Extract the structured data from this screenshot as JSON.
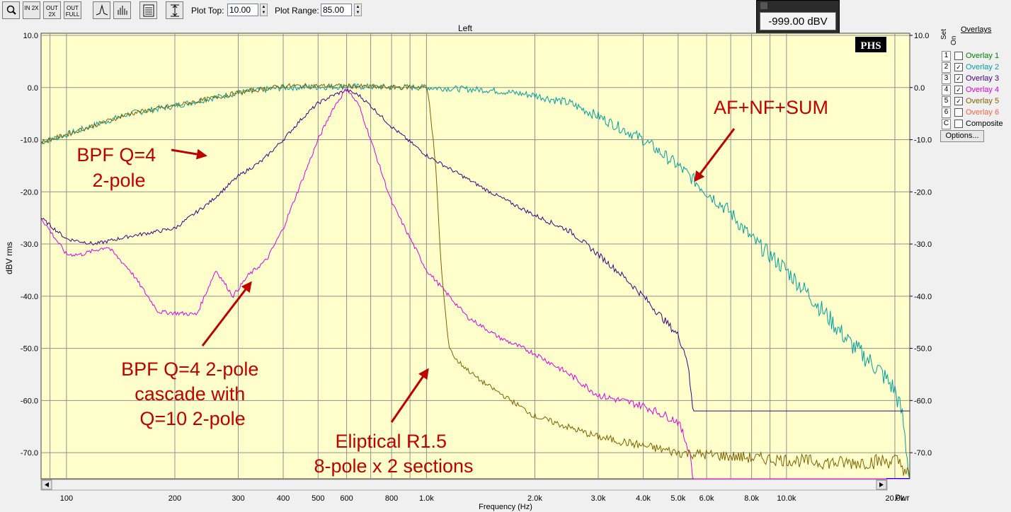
{
  "toolbar": {
    "buttons": [
      {
        "name": "zoom-button",
        "icon": "magnifier-icon",
        "label": ""
      },
      {
        "name": "zoom-in-2x-button",
        "icon": "zoom-in-icon",
        "label": "IN 2X"
      },
      {
        "name": "zoom-out-2x-button",
        "icon": "zoom-out-icon",
        "label": "OUT 2X"
      },
      {
        "name": "zoom-out-full-button",
        "icon": "zoom-full-icon",
        "label": "OUT FULL"
      },
      {
        "name": "peak-button",
        "icon": "peak-icon",
        "label": ""
      },
      {
        "name": "bars-button",
        "icon": "bars-icon",
        "label": ""
      },
      {
        "name": "report-button",
        "icon": "report-icon",
        "label": ""
      },
      {
        "name": "autoscale-button",
        "icon": "vertical-range-icon",
        "label": ""
      }
    ],
    "plot_top_label": "Plot Top:",
    "plot_top_value": "10.00",
    "plot_range_label": "Plot Range:",
    "plot_range_value": "85.00"
  },
  "readout": {
    "value": "-999.00 dBV rms"
  },
  "overlays": {
    "header": "Overlays",
    "set_label": "Set",
    "on_label": "On",
    "items": [
      {
        "num": "1",
        "label": "Overlay 1",
        "checked": false,
        "color": "#008000"
      },
      {
        "num": "2",
        "label": "Overlay 2",
        "checked": true,
        "color": "#00a0a0"
      },
      {
        "num": "3",
        "label": "Overlay 3",
        "checked": true,
        "color": "#400080"
      },
      {
        "num": "4",
        "label": "Overlay 4",
        "checked": true,
        "color": "#e000e0"
      },
      {
        "num": "5",
        "label": "Overlay 5",
        "checked": true,
        "color": "#806000"
      },
      {
        "num": "6",
        "label": "Overlay 6",
        "checked": false,
        "color": "#ff6040"
      },
      {
        "num": "C",
        "label": "Composite",
        "checked": false,
        "color": "#000000"
      }
    ],
    "options_label": "Options..."
  },
  "chart_data": {
    "type": "line",
    "title": "Left",
    "badge": "PHS",
    "xlabel": "Frequency (Hz)",
    "ylabel": "dBV rms",
    "right_label": "Pwr",
    "xscale": "log",
    "xlim": [
      85,
      22000
    ],
    "ylim": [
      -75,
      10
    ],
    "grid": true,
    "background": "#ffffcc",
    "yticks": [
      "10.0",
      "0.0",
      "-10.0",
      "-20.0",
      "-30.0",
      "-40.0",
      "-50.0",
      "-60.0",
      "-70.0"
    ],
    "xticks": [
      {
        "v": 100,
        "t": "100"
      },
      {
        "v": 200,
        "t": "200"
      },
      {
        "v": 300,
        "t": "300"
      },
      {
        "v": 400,
        "t": "400"
      },
      {
        "v": 500,
        "t": "500"
      },
      {
        "v": 600,
        "t": "600"
      },
      {
        "v": 800,
        "t": "800"
      },
      {
        "v": 1000,
        "t": "1.0k"
      },
      {
        "v": 2000,
        "t": "2.0k"
      },
      {
        "v": 3000,
        "t": "3.0k"
      },
      {
        "v": 4000,
        "t": "4.0k"
      },
      {
        "v": 5000,
        "t": "5.0k"
      },
      {
        "v": 6000,
        "t": "6.0k"
      },
      {
        "v": 8000,
        "t": "8.0k"
      },
      {
        "v": 10000,
        "t": "10.0k"
      },
      {
        "v": 20000,
        "t": "20.0k"
      }
    ],
    "series": [
      {
        "color": "#00a0a0",
        "noise": 0.6,
        "points": [
          [
            85,
            -10.5
          ],
          [
            100,
            -9
          ],
          [
            150,
            -5
          ],
          [
            200,
            -3.5
          ],
          [
            300,
            -1
          ],
          [
            400,
            0
          ],
          [
            600,
            0.2
          ],
          [
            1000,
            0
          ],
          [
            1500,
            -0.5
          ],
          [
            2000,
            -1.5
          ],
          [
            2500,
            -3
          ],
          [
            3000,
            -5.5
          ],
          [
            4000,
            -10
          ],
          [
            5000,
            -15
          ],
          [
            6000,
            -20
          ],
          [
            7000,
            -24
          ],
          [
            8000,
            -29
          ],
          [
            10000,
            -35
          ],
          [
            12000,
            -41
          ],
          [
            15000,
            -49
          ],
          [
            18000,
            -54
          ],
          [
            20000,
            -58
          ],
          [
            21000,
            -63
          ],
          [
            22000,
            -75
          ]
        ]
      },
      {
        "color": "#400080",
        "noise": 0.35,
        "points": [
          [
            85,
            -25
          ],
          [
            100,
            -29
          ],
          [
            120,
            -30
          ],
          [
            150,
            -28.5
          ],
          [
            200,
            -27
          ],
          [
            250,
            -22
          ],
          [
            300,
            -17
          ],
          [
            350,
            -14
          ],
          [
            400,
            -10
          ],
          [
            450,
            -6
          ],
          [
            500,
            -3
          ],
          [
            550,
            -1.5
          ],
          [
            600,
            -0.5
          ],
          [
            650,
            -1.5
          ],
          [
            700,
            -3.5
          ],
          [
            800,
            -7.5
          ],
          [
            1000,
            -13
          ],
          [
            1500,
            -20
          ],
          [
            2000,
            -24.5
          ],
          [
            2500,
            -27.5
          ],
          [
            3000,
            -32
          ],
          [
            3500,
            -36
          ],
          [
            4000,
            -40
          ],
          [
            4500,
            -44
          ],
          [
            5000,
            -47.5
          ],
          [
            5300,
            -52
          ],
          [
            5500,
            -62
          ],
          [
            22000,
            -62
          ]
        ]
      },
      {
        "color": "#e000e0",
        "noise": 0.4,
        "points": [
          [
            85,
            -25
          ],
          [
            100,
            -32
          ],
          [
            110,
            -32
          ],
          [
            130,
            -30.5
          ],
          [
            150,
            -35
          ],
          [
            180,
            -43
          ],
          [
            230,
            -43.5
          ],
          [
            260,
            -35
          ],
          [
            290,
            -40
          ],
          [
            320,
            -36
          ],
          [
            360,
            -33
          ],
          [
            400,
            -27
          ],
          [
            450,
            -18
          ],
          [
            500,
            -10
          ],
          [
            550,
            -4
          ],
          [
            600,
            -0.2
          ],
          [
            650,
            -3.5
          ],
          [
            700,
            -10
          ],
          [
            800,
            -22
          ],
          [
            1000,
            -35
          ],
          [
            1300,
            -44
          ],
          [
            1600,
            -48
          ],
          [
            2000,
            -51
          ],
          [
            2500,
            -55
          ],
          [
            3000,
            -59
          ],
          [
            4000,
            -61
          ],
          [
            5000,
            -64
          ],
          [
            5400,
            -70
          ],
          [
            5500,
            -75
          ],
          [
            22000,
            -75
          ]
        ]
      },
      {
        "color": "#806000",
        "noise": 0.45,
        "points": [
          [
            85,
            -10.5
          ],
          [
            100,
            -9
          ],
          [
            150,
            -5
          ],
          [
            200,
            -3.5
          ],
          [
            300,
            -1
          ],
          [
            400,
            0.3
          ],
          [
            600,
            0.3
          ],
          [
            800,
            0
          ],
          [
            1000,
            0.2
          ],
          [
            1020,
            -3
          ],
          [
            1060,
            -15
          ],
          [
            1100,
            -35
          ],
          [
            1150,
            -49
          ],
          [
            1200,
            -52
          ],
          [
            1400,
            -56
          ],
          [
            2000,
            -63
          ],
          [
            3000,
            -67
          ],
          [
            5000,
            -70
          ],
          [
            8000,
            -71
          ],
          [
            14000,
            -72
          ],
          [
            20000,
            -71.5
          ],
          [
            21000,
            -72.5
          ],
          [
            22000,
            -75
          ]
        ]
      }
    ],
    "annotations": [
      {
        "text": "AF+NF+SUM",
        "lines": [
          "AF+NF+SUM"
        ]
      },
      {
        "text": "BPF Q=4 2-pole",
        "lines": [
          "BPF Q=4",
          "2-pole"
        ]
      },
      {
        "text": "BPF Q=4 2-pole cascade with Q=10 2-pole",
        "lines": [
          "BPF Q=4 2-pole",
          "cascade with",
          "Q=10 2-pole"
        ]
      },
      {
        "text": "Eliptical R1.5 8-pole x 2 sections",
        "lines": [
          "Eliptical R1.5",
          "8-pole x 2 sections"
        ]
      }
    ]
  }
}
